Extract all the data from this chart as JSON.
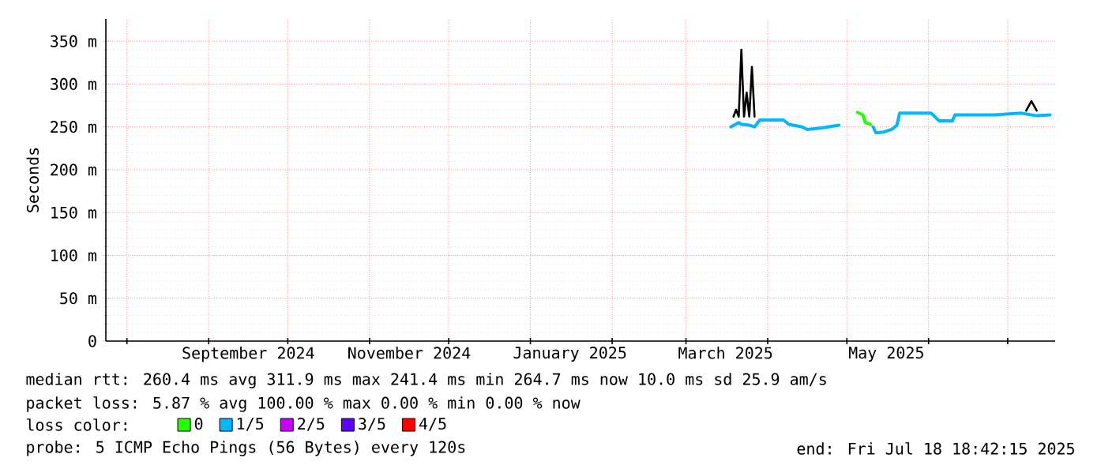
{
  "chart_data": {
    "type": "line",
    "ylabel": "Seconds",
    "legend_title": "loss color:",
    "legend": "bottom",
    "grid": true,
    "xlim": [
      "2024-07-24",
      "2025-07-19"
    ],
    "xticks": [
      {
        "value": "2024-08-01",
        "label": null
      },
      {
        "value": "2024-09-01",
        "label": null
      },
      {
        "value": "2024-09-16",
        "label": "September 2024"
      },
      {
        "value": "2024-10-01",
        "label": null
      },
      {
        "value": "2024-11-01",
        "label": null
      },
      {
        "value": "2024-11-16",
        "label": "November 2024"
      },
      {
        "value": "2024-12-01",
        "label": null
      },
      {
        "value": "2025-01-01",
        "label": null
      },
      {
        "value": "2025-01-16",
        "label": "January 2025"
      },
      {
        "value": "2025-02-01",
        "label": null
      },
      {
        "value": "2025-03-01",
        "label": null
      },
      {
        "value": "2025-03-16",
        "label": "March 2025"
      },
      {
        "value": "2025-04-01",
        "label": null
      },
      {
        "value": "2025-05-01",
        "label": null
      },
      {
        "value": "2025-05-16",
        "label": "May 2025"
      },
      {
        "value": "2025-06-01",
        "label": null
      },
      {
        "value": "2025-07-01",
        "label": null
      }
    ],
    "ylim": [
      0,
      376
    ],
    "yticks": [
      0,
      {
        "value": 50,
        "label": "50 m"
      },
      {
        "value": 100,
        "label": "100 m"
      },
      {
        "value": 150,
        "label": "150 m"
      },
      {
        "value": 200,
        "label": "200 m"
      },
      {
        "value": 250,
        "label": "250 m"
      },
      {
        "value": 300,
        "label": "300 m"
      },
      {
        "value": 350,
        "label": "350 m"
      }
    ],
    "series": [
      {
        "name": "0",
        "color": "#26ff00",
        "x": [
          "2025-05-05",
          "2025-05-07",
          "2025-05-08",
          "2025-05-10"
        ],
        "values": [
          267,
          264,
          255,
          253
        ]
      },
      {
        "name": "1/5",
        "color": "#00b8ff",
        "x": [
          "2025-03-18",
          "2025-03-21",
          "2025-03-22",
          "2025-03-25",
          "2025-03-27",
          "2025-03-29",
          "2025-04-07",
          "2025-04-09",
          "2025-04-14",
          "2025-04-16",
          "2025-04-22",
          "2025-04-28",
          "2025-05-01",
          "2025-05-11",
          "2025-05-12",
          "2025-05-15",
          "2025-05-18",
          "2025-05-20",
          "2025-05-21",
          "2025-06-02",
          "2025-06-05",
          "2025-06-10",
          "2025-06-11",
          "2025-06-26",
          "2025-07-06",
          "2025-07-12",
          "2025-07-17"
        ],
        "values": [
          250,
          255,
          253,
          252,
          250,
          258,
          258,
          253,
          250,
          247,
          249,
          252,
          null,
          250,
          243,
          244,
          247,
          252,
          266,
          266,
          257,
          257,
          264,
          264,
          266,
          263,
          264
        ]
      },
      {
        "name": "2/5",
        "color": "#c800ff"
      },
      {
        "name": "3/5",
        "color": "#5f00ff"
      },
      {
        "name": "4/5",
        "color": "#ff0000"
      },
      {
        "color": "#000000",
        "x": [
          "2025-03-19",
          "2025-03-20",
          "2025-03-21",
          "2025-03-22",
          "2025-03-23",
          "2025-03-24",
          "2025-03-25",
          "2025-03-26",
          "2025-03-27",
          "2025-03-28",
          "2025-07-08",
          "2025-07-10",
          "2025-07-12"
        ],
        "values": [
          262,
          270,
          262,
          340,
          262,
          290,
          262,
          320,
          262,
          null,
          269,
          280,
          269
        ]
      }
    ],
    "annotations": [
      "median rtt:  260.4 ms avg  311.9 ms max  241.4 ms min  264.7 ms now  10.0 ms sd  25.9   am/s",
      "packet loss: 5.87 % avg  100.00 % max  0.00 % min  0.00 % now",
      "probe:       5 ICMP Echo Pings (56 Bytes) every 120s",
      "end: Fri Jul 18 18:42:15 2025"
    ]
  }
}
